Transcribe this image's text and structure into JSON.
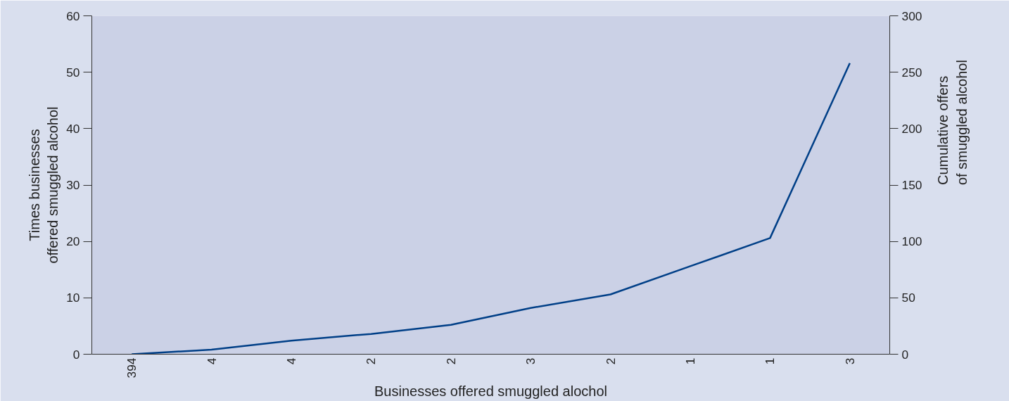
{
  "chart_data": {
    "type": "line",
    "xlabel": "Businesses offered smuggled alochol",
    "ylabel": "Times businesses offered smuggled alcohol",
    "y2label": "Cumulative offers of smuggled alcohol",
    "categories": [
      "394",
      "4",
      "4",
      "2",
      "2",
      "3",
      "2",
      "1",
      "1",
      "3"
    ],
    "series": [
      {
        "color": "#003f87",
        "axis": "y2",
        "values": [
          0,
          4,
          12,
          18,
          26,
          41,
          53,
          78,
          103,
          258
        ]
      }
    ],
    "ylim": [
      0,
      60
    ],
    "yticks": [
      0,
      10,
      20,
      30,
      40,
      50,
      60
    ],
    "y2lim": [
      0,
      300
    ],
    "y2ticks": [
      0,
      50,
      100,
      150,
      200,
      250,
      300
    ],
    "grid": false,
    "marker": "none",
    "line_style": "solid"
  }
}
